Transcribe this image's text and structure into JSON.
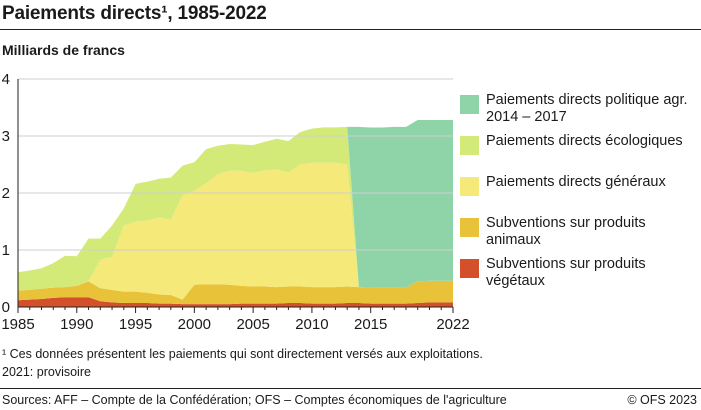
{
  "title": "Paiements directs¹, 1985-2022",
  "unit_label": "Milliards de francs",
  "chart_data": {
    "type": "area",
    "stacked": true,
    "title": "Paiements directs¹, 1985-2022",
    "ylabel": "Milliards de francs",
    "xlabel": "",
    "xlim": [
      1985,
      2022
    ],
    "ylim": [
      0,
      4
    ],
    "x_ticks": [
      1985,
      1990,
      1995,
      2000,
      2005,
      2010,
      2015,
      2022
    ],
    "y_ticks": [
      0,
      1,
      2,
      3,
      4
    ],
    "grid": "horizontal",
    "legend_position": "right",
    "x": [
      1985,
      1986,
      1987,
      1988,
      1989,
      1990,
      1991,
      1992,
      1993,
      1994,
      1995,
      1996,
      1997,
      1998,
      1999,
      2000,
      2001,
      2002,
      2003,
      2004,
      2005,
      2006,
      2007,
      2008,
      2009,
      2010,
      2011,
      2012,
      2013,
      2014,
      2015,
      2016,
      2017,
      2018,
      2019,
      2020,
      2021,
      2022
    ],
    "series": [
      {
        "name": "Subventions sur produits végétaux",
        "color": "#d4502a",
        "values": [
          0.12,
          0.13,
          0.14,
          0.16,
          0.17,
          0.17,
          0.17,
          0.1,
          0.08,
          0.07,
          0.07,
          0.07,
          0.06,
          0.06,
          0.05,
          0.05,
          0.05,
          0.05,
          0.05,
          0.06,
          0.06,
          0.06,
          0.06,
          0.07,
          0.07,
          0.06,
          0.06,
          0.06,
          0.07,
          0.07,
          0.06,
          0.06,
          0.06,
          0.06,
          0.07,
          0.08,
          0.08,
          0.08
        ]
      },
      {
        "name": "Subventions sur produits animaux",
        "color": "#e8c33a",
        "values": [
          0.17,
          0.17,
          0.18,
          0.18,
          0.18,
          0.2,
          0.28,
          0.23,
          0.22,
          0.2,
          0.2,
          0.18,
          0.16,
          0.15,
          0.08,
          0.34,
          0.35,
          0.35,
          0.34,
          0.31,
          0.3,
          0.3,
          0.29,
          0.29,
          0.29,
          0.29,
          0.29,
          0.29,
          0.29,
          0.28,
          0.28,
          0.28,
          0.28,
          0.28,
          0.38,
          0.38,
          0.38,
          0.38
        ]
      },
      {
        "name": "Paiements directs généraux",
        "color": "#f5e97a",
        "values": [
          0.0,
          0.0,
          0.0,
          0.0,
          0.0,
          0.0,
          0.0,
          0.5,
          0.58,
          1.16,
          1.23,
          1.27,
          1.35,
          1.32,
          1.83,
          1.65,
          1.77,
          1.93,
          2.0,
          2.02,
          1.99,
          2.04,
          2.06,
          2.0,
          2.14,
          2.18,
          2.18,
          2.18,
          2.14,
          0.0,
          0.0,
          0.0,
          0.0,
          0.0,
          0.0,
          0.0,
          0.0,
          0.0
        ]
      },
      {
        "name": "Paiements directs écologiques",
        "color": "#d4ea78",
        "values": [
          0.32,
          0.34,
          0.36,
          0.43,
          0.55,
          0.52,
          0.75,
          0.37,
          0.55,
          0.3,
          0.66,
          0.68,
          0.68,
          0.74,
          0.52,
          0.5,
          0.6,
          0.5,
          0.47,
          0.46,
          0.49,
          0.5,
          0.54,
          0.55,
          0.57,
          0.6,
          0.62,
          0.62,
          0.66,
          0.0,
          0.0,
          0.0,
          0.0,
          0.0,
          0.0,
          0.0,
          0.0,
          0.0
        ]
      },
      {
        "name": "Paiements directs politique agr. 2014 – 2017",
        "color": "#8fd4a9",
        "values": [
          0.0,
          0.0,
          0.0,
          0.0,
          0.0,
          0.0,
          0.0,
          0.0,
          0.0,
          0.0,
          0.0,
          0.0,
          0.0,
          0.0,
          0.0,
          0.0,
          0.0,
          0.0,
          0.0,
          0.0,
          0.0,
          0.0,
          0.0,
          0.0,
          0.0,
          0.0,
          0.0,
          0.0,
          0.0,
          2.81,
          2.81,
          2.81,
          2.82,
          2.82,
          2.83,
          2.82,
          2.82,
          2.82
        ]
      }
    ]
  },
  "legend": [
    {
      "label": "Paiements directs politique agr. 2014 – 2017",
      "color": "#8fd4a9"
    },
    {
      "label": "Paiements directs écologiques",
      "color": "#d4ea78"
    },
    {
      "label": "Paiements directs généraux",
      "color": "#f5e97a"
    },
    {
      "label": "Subventions sur produits animaux",
      "color": "#e8c33a"
    },
    {
      "label": "Subventions sur produits végétaux",
      "color": "#d4502a"
    }
  ],
  "footnotes": {
    "note1": "¹   Ces données présentent les paiements qui sont directement versés aux exploitations.",
    "note2": "2021: provisoire"
  },
  "sources": "Sources: AFF – Compte de la Confédération; OFS – Comptes économiques de l'agriculture",
  "copyright": "© OFS 2023"
}
